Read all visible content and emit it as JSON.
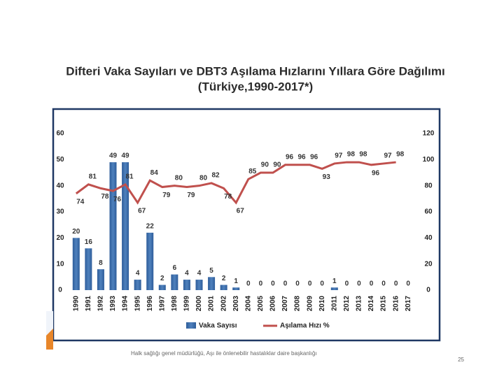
{
  "chart_data": {
    "type": "bar-line",
    "title": "Difteri Vaka Sayıları ve DBT3 Aşılama Hızlarını Yıllara Göre Dağılımı",
    "subtitle": "(Türkiye,1990-2017*)",
    "categories": [
      "1990",
      "1991",
      "1992",
      "1993",
      "1994",
      "1995",
      "1996",
      "1997",
      "1998",
      "1999",
      "2000",
      "2001",
      "2002",
      "2003",
      "2004",
      "2005",
      "2006",
      "2007",
      "2008",
      "2009",
      "2010",
      "2011",
      "2012",
      "2013",
      "2014",
      "2015",
      "2016",
      "2017"
    ],
    "series": [
      {
        "name": "Vaka Sayısı",
        "color": "#4f81bd",
        "axis": "y",
        "values": [
          20,
          16,
          8,
          49,
          49,
          4,
          22,
          2,
          6,
          4,
          4,
          5,
          2,
          1,
          0,
          0,
          0,
          0,
          0,
          0,
          0,
          1,
          0,
          0,
          0,
          0,
          0,
          0
        ]
      },
      {
        "name": "Aşılama Hızı %",
        "color": "#c0504d",
        "axis": "y2",
        "values": [
          74,
          81,
          78,
          76,
          81,
          67,
          84,
          79,
          80,
          79,
          80,
          82,
          78,
          67,
          85,
          90,
          90,
          96,
          96,
          96,
          93,
          97,
          98,
          98,
          96,
          97,
          98,
          null
        ]
      }
    ],
    "ylim": [
      0,
      60
    ],
    "yticks": [
      0,
      10,
      20,
      30,
      40,
      50,
      60
    ],
    "y2lim": [
      0,
      120
    ],
    "y2ticks": [
      0,
      20,
      40,
      60,
      80,
      100,
      120
    ],
    "legend": "bottom"
  },
  "footer": "Halk sağlığı genel müdürlüğü, Aşı ile önlenebilir hastalıklar daire başkanlığı",
  "page_number": "25"
}
